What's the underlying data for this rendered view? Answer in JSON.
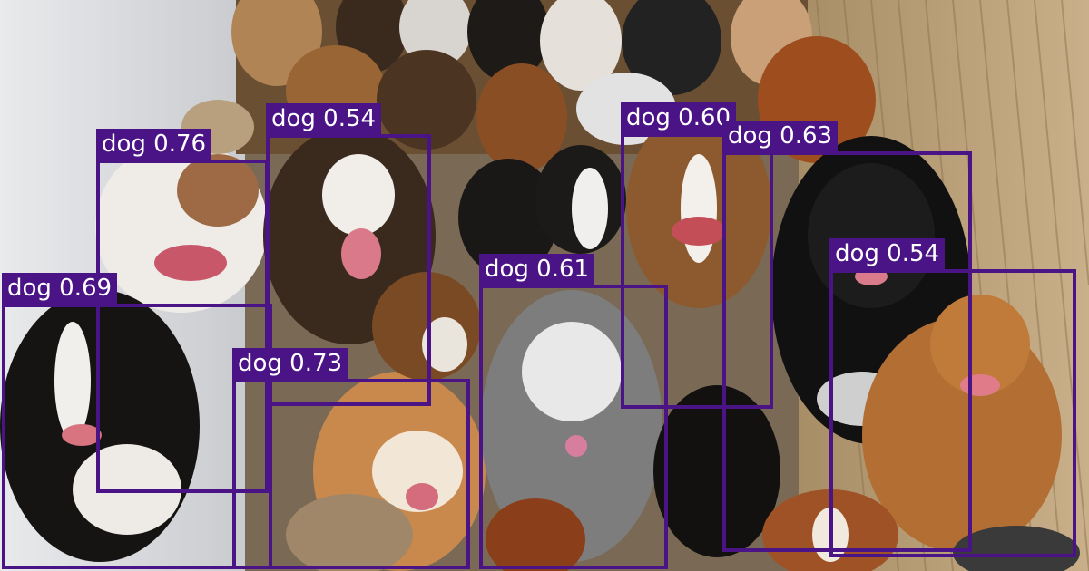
{
  "image": {
    "description_icon": "photo-of-many-dogs"
  },
  "detections": [
    {
      "label": "dog 0.76",
      "class": "dog",
      "score": 0.76
    },
    {
      "label": "dog 0.54",
      "class": "dog",
      "score": 0.54
    },
    {
      "label": "dog 0.60",
      "class": "dog",
      "score": 0.6
    },
    {
      "label": "dog 0.63",
      "class": "dog",
      "score": 0.63
    },
    {
      "label": "dog 0.69",
      "class": "dog",
      "score": 0.69
    },
    {
      "label": "dog 0.61",
      "class": "dog",
      "score": 0.61
    },
    {
      "label": "dog 0.73",
      "class": "dog",
      "score": 0.73
    },
    {
      "label": "dog 0.54",
      "class": "dog",
      "score": 0.54
    }
  ],
  "colors": {
    "box": "#4a1486",
    "label_bg": "#4a1486",
    "label_text": "#ffffff"
  }
}
